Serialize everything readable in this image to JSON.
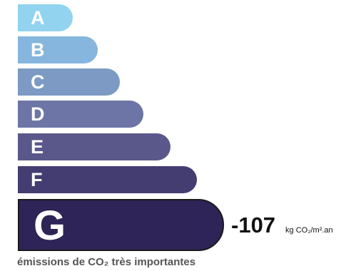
{
  "colors": {
    "a": "#92d3f0",
    "b": "#86b6dd",
    "c": "#7c9ac3",
    "d": "#6c75a6",
    "e": "#5a588b",
    "f": "#443d72",
    "g": "#2f2457"
  },
  "classes": [
    {
      "letter": "A"
    },
    {
      "letter": "B"
    },
    {
      "letter": "C"
    },
    {
      "letter": "D"
    },
    {
      "letter": "E"
    },
    {
      "letter": "F"
    },
    {
      "letter": "G"
    }
  ],
  "current_class": "G",
  "reading": {
    "value": "-107",
    "unit": "kg CO₂/m².an"
  },
  "caption": "émissions de CO₂ très importantes"
}
